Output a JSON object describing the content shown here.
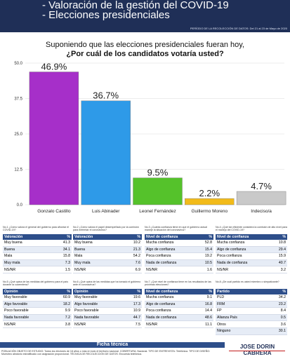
{
  "header": {
    "line1": "- Valoración de la gestión del COVID-19",
    "line2": "- Elecciones presidenciales",
    "period": "PERÍODO DE LA RECOLECCIÓN DE DATOS: Del 21 al 23 de Mayo de 2020"
  },
  "question": {
    "line1": "Suponiendo que las elecciones presidenciales fueran hoy,",
    "line2": "¿Por cuál de los candidatos votaría usted?"
  },
  "chart_data": {
    "type": "bar",
    "categories": [
      "Gonzalo Castillo",
      "Luis Abinader",
      "Leonel Fernández",
      "Guillermo Moreno",
      "Indeciso/a"
    ],
    "values": [
      46.9,
      36.7,
      9.5,
      2.2,
      4.7
    ],
    "value_labels": [
      "46.9%",
      "36.7%",
      "9.5%",
      "2.2%",
      "4.7%"
    ],
    "yticks": [
      "50.0",
      "37.5",
      "25.0",
      "12.5",
      "0.0"
    ],
    "ylim": [
      0,
      50
    ],
    "colors": [
      "#a62fc9",
      "#2e9ae8",
      "#55c22b",
      "#f2bb1a",
      "#c9c9c9"
    ],
    "grid": true
  },
  "tables": [
    {
      "note": "No.1 ¿Cómo valora el general del gobierno para afrontar el COVID-19?",
      "head": [
        "Valoración",
        "%"
      ],
      "rows": [
        [
          "Muy buena",
          "41.3"
        ],
        [
          "Buena",
          "34.1"
        ],
        [
          "Mala",
          "15.8"
        ],
        [
          "Muy mala",
          "7.3"
        ],
        [
          "NS/NR",
          "1.5"
        ]
      ]
    },
    {
      "note": "No.2 ¿Cómo valora el papel desempeñado por la comisión para enfrentar el coronavirus?",
      "head": [
        "Valoración",
        "%"
      ],
      "rows": [
        [
          "Muy buena",
          "10.2"
        ],
        [
          "Buena",
          "21.3"
        ],
        [
          "Mala",
          "54.2"
        ],
        [
          "Muy mala",
          "7.6"
        ],
        [
          "NS/NR",
          "6.9"
        ]
      ]
    },
    {
      "note": "No.3 ¿Cuánta confianza tiene en que el gobierno actual maneje la situación del coronavirus?",
      "head": [
        "Nivel de confianza",
        "%"
      ],
      "rows": [
        [
          "Mucha confianza",
          "52.8"
        ],
        [
          "Algo de confianza",
          "15.4"
        ],
        [
          "Poca confianza",
          "19.2"
        ],
        [
          "Nada de confianza",
          "10.5"
        ],
        [
          "NS/NR",
          "1.6"
        ]
      ]
    },
    {
      "note": "No.4 ¿Qué tan eficiente considera la comisión de alto nivel para el manejo del COVID-19?",
      "head": [
        "Nivel de confianza",
        "%"
      ],
      "rows": [
        [
          "Mucha confianza",
          "10.8"
        ],
        [
          "Algo de confianza",
          "29.4"
        ],
        [
          "Poca confianza",
          "15.9"
        ],
        [
          "Nada de confianza",
          "40.7"
        ],
        [
          "NS/NR",
          "3.2"
        ]
      ]
    },
    {
      "note": "No.5 ¿Qué opina de las medidas del gobierno para el país durante la cuarentena?",
      "head": [
        "Opinión",
        "%"
      ],
      "rows": [
        [
          "Muy favorable",
          "60.9"
        ],
        [
          "Algo favorable",
          "18.2"
        ],
        [
          "Poco favorable",
          "9.9"
        ],
        [
          "Nada favorable",
          "7.2"
        ],
        [
          "NS/NR",
          "3.8"
        ]
      ]
    },
    {
      "note": "No.6 ¿Qué opina de las medidas que ha tomado el gobierno ante el coronavirus?",
      "head": [
        "Opinión",
        "%"
      ],
      "rows": [
        [
          "Muy favorable",
          "19.6"
        ],
        [
          "Algo favorable",
          "17.3"
        ],
        [
          "Poco favorable",
          "10.9"
        ],
        [
          "Nada favorable",
          "44.7"
        ],
        [
          "NS/NR",
          "7.5"
        ]
      ]
    },
    {
      "note": "No.7 ¿Qué nivel de confianza tiene en los resultados de las próximas elecciones?",
      "head": [
        "Nivel de confianza",
        "%"
      ],
      "rows": [
        [
          "Mucha confianza",
          "9.1"
        ],
        [
          "Algo de confianza",
          "16.8"
        ],
        [
          "Poca confianza",
          "14.4"
        ],
        [
          "Nada de confianza",
          "48.6"
        ],
        [
          "NS/NR",
          "11.1"
        ]
      ]
    },
    {
      "note": "No.8 ¿De cuál partido es usted miembro o simpatizante?",
      "head": [
        "Partido",
        "%"
      ],
      "rows": [
        [
          "PLD",
          "34.2"
        ],
        [
          "FRM",
          "23.2"
        ],
        [
          "FP",
          "8.4"
        ],
        [
          "Alianza País",
          "0.5"
        ],
        [
          "Otros",
          "3.6"
        ],
        [
          "Ninguno",
          "30.1"
        ]
      ]
    }
  ],
  "footer": {
    "title": "Ficha técnica",
    "text": "POBLACIÓN OBJETO DE ESTUDIO: Todos los electores de 18 años o más en todo el territorio nacional. COBERTURA: Nacional. TIPO DE ENTREVISTA: Telefónica. TIPO DE DISEÑO: Muestreo aleatorio estratificado con asignación proporcional. TÉCNICA DE RECOLECCIÓN DE DATOS: Encuesta telefónica.",
    "brand": "JOSE DORIN CABRERA"
  }
}
